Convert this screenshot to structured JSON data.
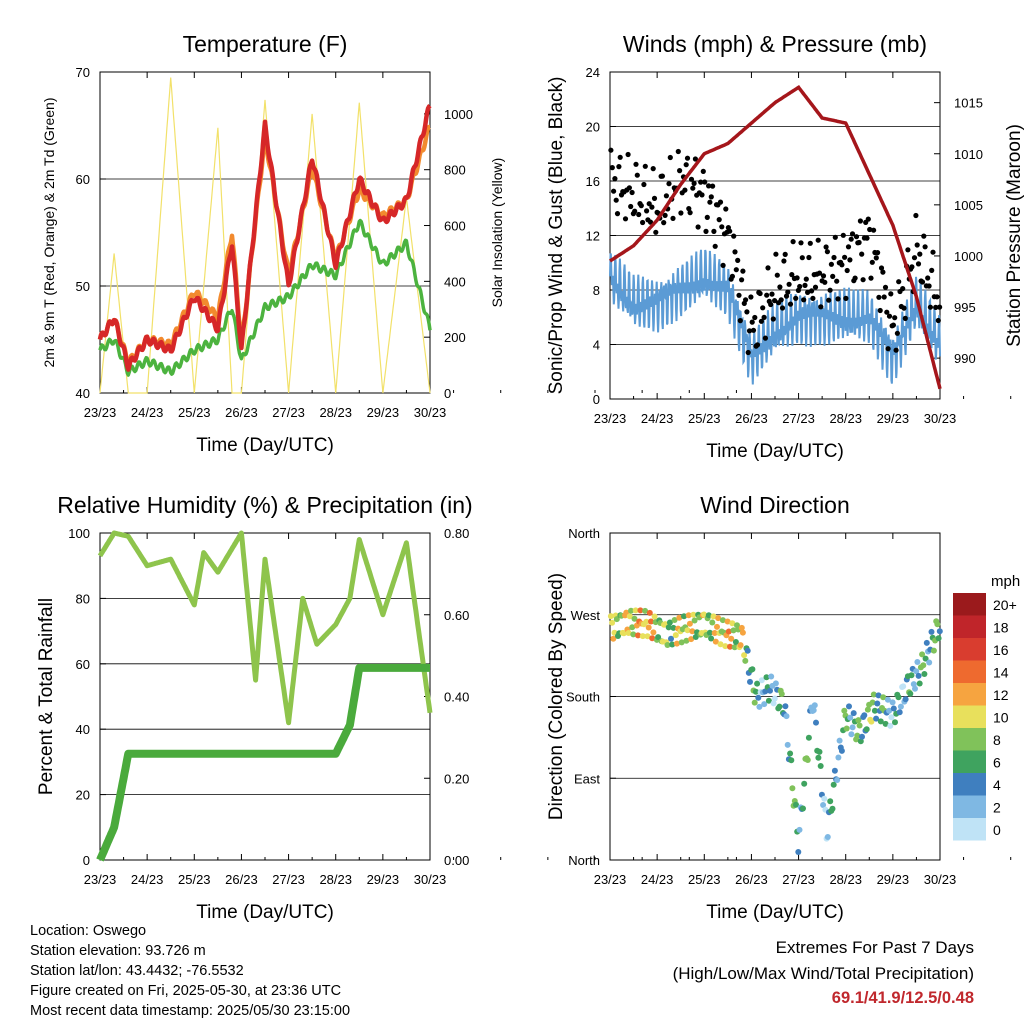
{
  "x_ticks": [
    "23/23",
    "24/23",
    "25/23",
    "26/23",
    "27/23",
    "28/23",
    "29/23",
    "30/23"
  ],
  "colors": {
    "temp_2m": "#d62728",
    "temp_9m": "#f28a2e",
    "dewpoint": "#4cb33f",
    "insolation": "#f2e16a",
    "wind_speed": "#5b9bd5",
    "gust": "#000000",
    "pressure": "#a5161b",
    "rh": "#8ec44c",
    "precip": "#4aaa3c",
    "extremes": "#c0282d"
  },
  "chart_data": [
    {
      "id": "temperature",
      "type": "line",
      "title": "Temperature (F)",
      "xlabel": "Time (Day/UTC)",
      "ylabel": "2m & 9m T (Red, Orange) & 2m Td (Green)",
      "y2label": "Solar Insolation (Yellow)",
      "ylim": [
        40,
        70
      ],
      "y2lim": [
        0,
        1150
      ],
      "yticks": [
        "40",
        "50",
        "60",
        "70"
      ],
      "y2ticks": [
        "0",
        "200",
        "400",
        "600",
        "800",
        "1000"
      ],
      "grid": true,
      "x": [
        0,
        0.3,
        0.6,
        1,
        1.5,
        2,
        2.5,
        2.8,
        3,
        3.5,
        4,
        4.5,
        5,
        5.5,
        6,
        6.5,
        7
      ],
      "series": [
        {
          "key": "temp_2m",
          "values": [
            45,
            47,
            42.5,
            45,
            44,
            49,
            46,
            54,
            44,
            65,
            50,
            62,
            52,
            60,
            56,
            58,
            67
          ]
        },
        {
          "key": "temp_9m",
          "values": [
            45,
            47,
            42.8,
            45,
            44.5,
            49.5,
            47,
            55,
            44.5,
            64,
            51,
            61,
            52.5,
            59,
            56.5,
            58,
            65
          ]
        },
        {
          "key": "dewpoint",
          "values": [
            44,
            45,
            42,
            43,
            42,
            44,
            45,
            48,
            43,
            48,
            49,
            52,
            51,
            56,
            52,
            54,
            46
          ]
        },
        {
          "key": "insolation",
          "axis": "y2",
          "values": [
            0,
            500,
            0,
            0,
            1130,
            0,
            950,
            0,
            0,
            1050,
            0,
            1000,
            0,
            1040,
            0,
            700,
            0
          ]
        }
      ]
    },
    {
      "id": "winds",
      "type": "scatter",
      "title": "Winds (mph) & Pressure (mb)",
      "xlabel": "Time (Day/UTC)",
      "ylabel": "Sonic/Prop Wind & Gust (Blue, Black)",
      "y2label": "Station Pressure (Maroon)",
      "ylim": [
        0,
        24
      ],
      "y2lim": [
        986,
        1018
      ],
      "yticks": [
        "0",
        "4",
        "8",
        "12",
        "16",
        "20",
        "24"
      ],
      "y2ticks": [
        "990",
        "995",
        "1000",
        "1005",
        "1010",
        "1015"
      ],
      "grid": true,
      "x": [
        0,
        0.5,
        1,
        1.5,
        2,
        2.5,
        3,
        3.5,
        4,
        4.5,
        5,
        5.5,
        6,
        6.5,
        7
      ],
      "series": [
        {
          "key": "wind_speed",
          "values": [
            9,
            7,
            7,
            8,
            9,
            8,
            3,
            5,
            6,
            6,
            6,
            6,
            3,
            7,
            4
          ]
        },
        {
          "key": "gust",
          "values": [
            16,
            15,
            14,
            16,
            15,
            12,
            5,
            8,
            9,
            9,
            10,
            12,
            5,
            11,
            7
          ]
        },
        {
          "key": "pressure",
          "axis": "y2",
          "values": [
            999.5,
            1001,
            1003.5,
            1007,
            1010,
            1011,
            1013,
            1015,
            1016.5,
            1013.5,
            1013,
            1008,
            1003,
            996,
            987
          ]
        }
      ]
    },
    {
      "id": "rh_precip",
      "type": "line",
      "title": "Relative Humidity (%) & Precipitation (in)",
      "xlabel": "Time (Day/UTC)",
      "ylabel": "Percent & Total Rainfall",
      "ylim": [
        0,
        100
      ],
      "y2lim": [
        0,
        0.8
      ],
      "yticks": [
        "0",
        "20",
        "40",
        "60",
        "80",
        "100"
      ],
      "y2ticks": [
        "0.00",
        "0.20",
        "0.40",
        "0.60",
        "0.80"
      ],
      "grid": true,
      "x": [
        0,
        0.3,
        0.6,
        1,
        1.5,
        2,
        2.2,
        2.5,
        3,
        3.3,
        3.5,
        4,
        4.3,
        4.6,
        5,
        5.3,
        5.5,
        6,
        6.5,
        7
      ],
      "series": [
        {
          "key": "rh",
          "values": [
            93,
            100,
            99,
            90,
            92,
            78,
            94,
            88,
            100,
            55,
            92,
            42,
            80,
            66,
            72,
            80,
            98,
            75,
            97,
            45
          ]
        },
        {
          "key": "precip",
          "axis": "y2",
          "values": [
            0,
            0.08,
            0.26,
            0.26,
            0.26,
            0.26,
            0.26,
            0.26,
            0.26,
            0.26,
            0.26,
            0.26,
            0.26,
            0.26,
            0.26,
            0.33,
            0.47,
            0.47,
            0.47,
            0.47
          ]
        }
      ]
    },
    {
      "id": "wind_direction",
      "type": "scatter",
      "title": "Wind Direction",
      "xlabel": "Time (Day/UTC)",
      "ylabel": "Direction (Colored By Speed)",
      "ylim": [
        0,
        360
      ],
      "yticks": [
        "North",
        "East",
        "South",
        "West",
        "North"
      ],
      "grid": true,
      "legend_title": "mph",
      "legend_labels": [
        "20+",
        "18",
        "16",
        "14",
        "12",
        "10",
        "8",
        "6",
        "4",
        "2",
        "0"
      ],
      "legend_colors": [
        "#9b1a1c",
        "#c0252a",
        "#d93d2f",
        "#ee6a2f",
        "#f6a440",
        "#e8e05c",
        "#80c25a",
        "#3fa35f",
        "#3f7fbf",
        "#7fb8e3",
        "#bfe3f6"
      ],
      "x": [
        0,
        0.4,
        0.8,
        1.2,
        1.6,
        2,
        2.4,
        2.8,
        3.1,
        3.4,
        3.7,
        4,
        4.3,
        4.6,
        5,
        5.3,
        5.6,
        6,
        6.3,
        6.6,
        7
      ],
      "direction_deg": [
        255,
        262,
        260,
        248,
        255,
        260,
        250,
        245,
        180,
        190,
        170,
        20,
        180,
        30,
        160,
        140,
        170,
        160,
        190,
        210,
        260
      ],
      "speed_mph": [
        8,
        10,
        12,
        7,
        10,
        8,
        11,
        9,
        4,
        3,
        5,
        6,
        4,
        3,
        5,
        6,
        7,
        3,
        4,
        5,
        6
      ]
    }
  ],
  "info": {
    "location": "Location: Oswego",
    "elevation": "Station elevation: 93.726 m",
    "latlon": "Station lat/lon: 43.4432; -76.5532",
    "created": "Figure created on Fri, 2025-05-30, at 23:36 UTC",
    "recent": "Most recent data timestamp: 2025/05/30 23:15:00"
  },
  "extremes": {
    "line1": "Extremes For Past 7 Days",
    "line2": "(High/Low/Max Wind/Total Precipitation)",
    "values": "69.1/41.9/12.5/0.48"
  }
}
